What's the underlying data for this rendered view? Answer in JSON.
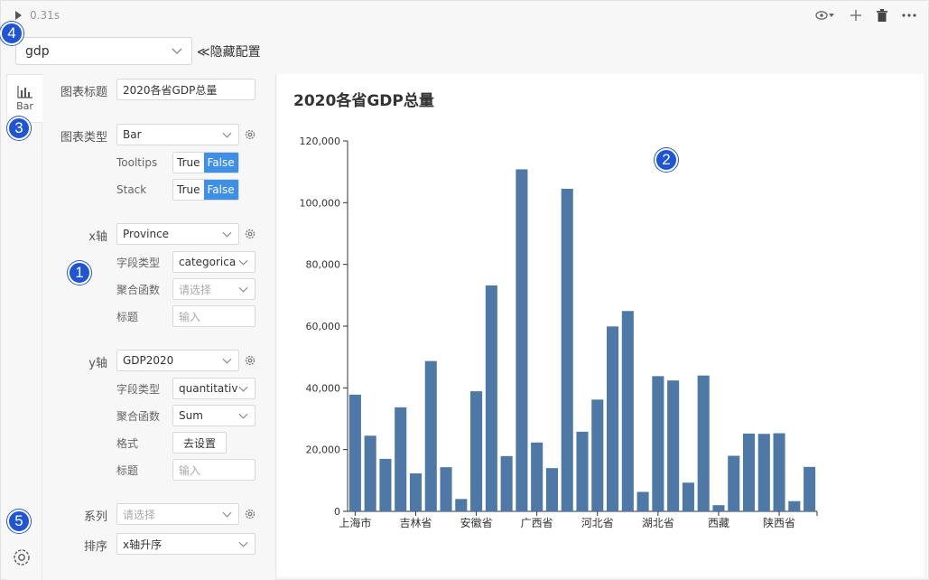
{
  "topbar": {
    "run_time": "0.31s"
  },
  "dataset": {
    "selected": "gdp",
    "hide_config_label": "≪隐藏配置"
  },
  "tabs": {
    "active_label": "Bar"
  },
  "config": {
    "title_label": "图表标题",
    "title_value": "2020各省GDP总量",
    "chart_type_label": "图表类型",
    "chart_type_value": "Bar",
    "tooltips_label": "Tooltips",
    "stack_label": "Stack",
    "true_label": "True",
    "false_label": "False",
    "x_axis": {
      "label": "x轴",
      "field": "Province",
      "field_type_label": "字段类型",
      "field_type_value": "categorica",
      "agg_label": "聚合函数",
      "agg_placeholder": "请选择",
      "title_label": "标题",
      "title_placeholder": "输入"
    },
    "y_axis": {
      "label": "y轴",
      "field": "GDP2020",
      "field_type_label": "字段类型",
      "field_type_value": "quantitativ",
      "agg_label": "聚合函数",
      "agg_value": "Sum",
      "format_label": "格式",
      "format_button": "去设置",
      "title_label": "标题",
      "title_placeholder": "输入"
    },
    "series_label": "系列",
    "series_placeholder": "请选择",
    "sort_label": "排序",
    "sort_value": "x轴升序"
  },
  "badges": [
    "1",
    "2",
    "3",
    "4",
    "5"
  ],
  "colors": {
    "bar": "#4e79a7",
    "accent": "#3d8fe8",
    "badge": "#1f55d4"
  },
  "chart_data": {
    "type": "bar",
    "title": "2020各省GDP总量",
    "ylim": [
      0,
      120000
    ],
    "yticks": [
      "0",
      "20,000",
      "40,000",
      "60,000",
      "80,000",
      "100,000",
      "120,000"
    ],
    "tick_labels": [
      "上海市",
      "吉林省",
      "安徽省",
      "广西省",
      "河北省",
      "湖北省",
      "西藏",
      "陕西省"
    ],
    "values": [
      37800,
      24500,
      17000,
      33700,
      12300,
      48700,
      14300,
      4000,
      38900,
      73200,
      17900,
      110800,
      22300,
      14000,
      104500,
      25800,
      36200,
      59900,
      64900,
      6300,
      43800,
      42400,
      9300,
      44000,
      2000,
      18000,
      25200,
      25100,
      25300,
      3300,
      14400
    ]
  }
}
